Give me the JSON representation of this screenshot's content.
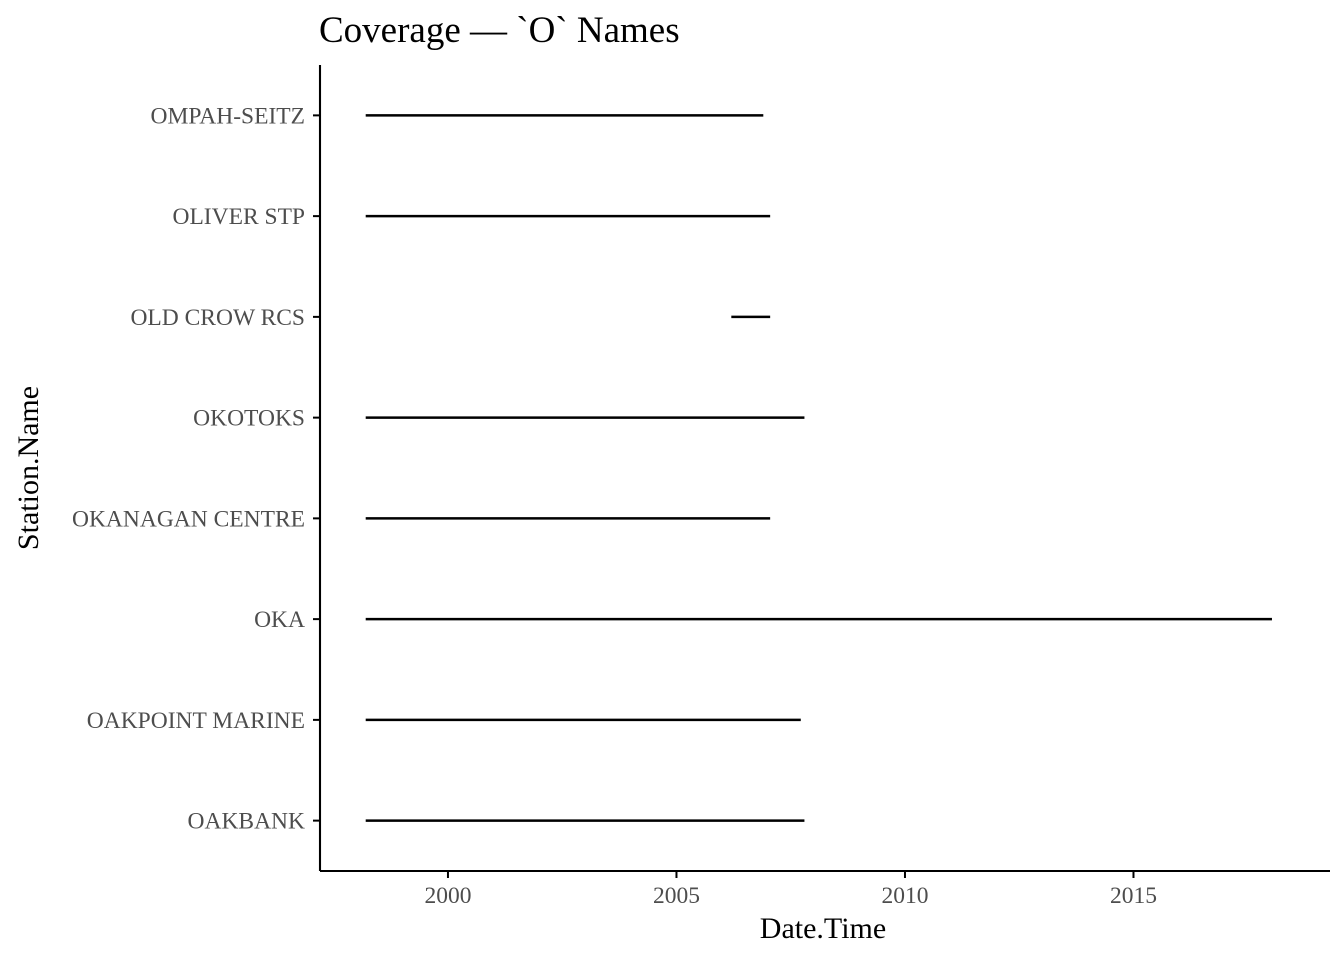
{
  "chart_data": {
    "type": "line",
    "title": "Coverage — `O` Names",
    "xlabel": "Date.Time",
    "ylabel": "Station.Name",
    "xlim": [
      1997.2,
      2019.3
    ],
    "x_ticks": [
      {
        "value": 2000,
        "label": "2000"
      },
      {
        "value": 2005,
        "label": "2005"
      },
      {
        "value": 2010,
        "label": "2010"
      },
      {
        "value": 2015,
        "label": "2015"
      }
    ],
    "categories": [
      "OAKBANK",
      "OAKPOINT MARINE",
      "OKA",
      "OKANAGAN CENTRE",
      "OKOTOKS",
      "OLD CROW RCS",
      "OLIVER STP",
      "OMPAH-SEITZ"
    ],
    "series": [
      {
        "category": "OAKBANK",
        "start": 1998.2,
        "end": 2007.8
      },
      {
        "category": "OAKPOINT MARINE",
        "start": 1998.2,
        "end": 2007.72
      },
      {
        "category": "OKA",
        "start": 1998.2,
        "end": 2018.03
      },
      {
        "category": "OKANAGAN CENTRE",
        "start": 1998.2,
        "end": 2007.05
      },
      {
        "category": "OKOTOKS",
        "start": 1998.2,
        "end": 2007.8
      },
      {
        "category": "OLD CROW RCS",
        "start": 2006.2,
        "end": 2007.05
      },
      {
        "category": "OLIVER STP",
        "start": 1998.2,
        "end": 2007.05
      },
      {
        "category": "OMPAH-SEITZ",
        "start": 1998.2,
        "end": 2006.9
      }
    ],
    "grid": false,
    "line_color": "#000000",
    "axis_color": "#000000",
    "tick_label_color": "#4d4d4d"
  }
}
